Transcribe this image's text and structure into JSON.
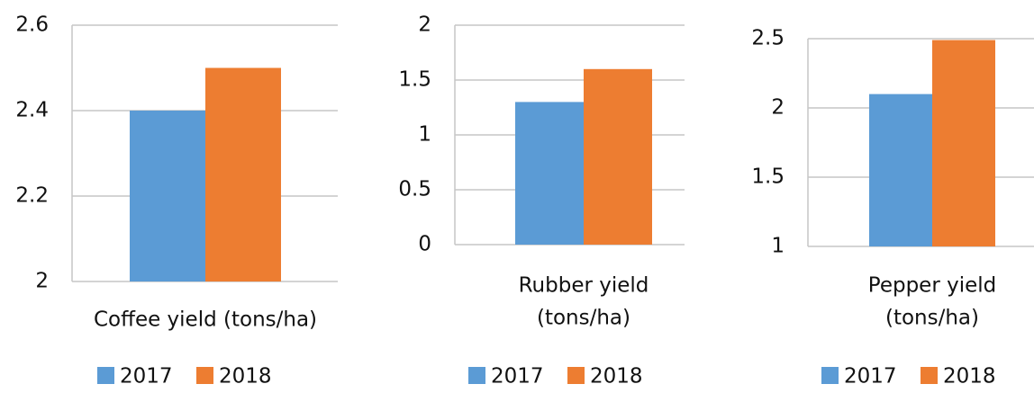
{
  "chart_data": [
    {
      "type": "bar",
      "xlabel": [
        "Coffee yield (tons/ha)"
      ],
      "ylim": [
        2,
        2.6
      ],
      "yticks": [
        2,
        2.2,
        2.4,
        2.6
      ],
      "grid": true,
      "series": [
        {
          "name": "2017",
          "color": "#5b9bd5",
          "values": [
            2.4
          ]
        },
        {
          "name": "2018",
          "color": "#ed7d31",
          "values": [
            2.5
          ]
        }
      ]
    },
    {
      "type": "bar",
      "xlabel": [
        "Rubber yield",
        "(tons/ha)"
      ],
      "ylim": [
        0,
        2
      ],
      "yticks": [
        0,
        0.5,
        1,
        1.5,
        2
      ],
      "grid": true,
      "series": [
        {
          "name": "2017",
          "color": "#5b9bd5",
          "values": [
            1.3
          ]
        },
        {
          "name": "2018",
          "color": "#ed7d31",
          "values": [
            1.6
          ]
        }
      ]
    },
    {
      "type": "bar",
      "xlabel": [
        "Pepper yield",
        "(tons/ha)"
      ],
      "ylim": [
        1,
        2.5
      ],
      "yticks": [
        1,
        1.5,
        2,
        2.5
      ],
      "grid": true,
      "series": [
        {
          "name": "2017",
          "color": "#5b9bd5",
          "values": [
            2.1
          ]
        },
        {
          "name": "2018",
          "color": "#ed7d31",
          "values": [
            2.49
          ]
        }
      ]
    }
  ]
}
